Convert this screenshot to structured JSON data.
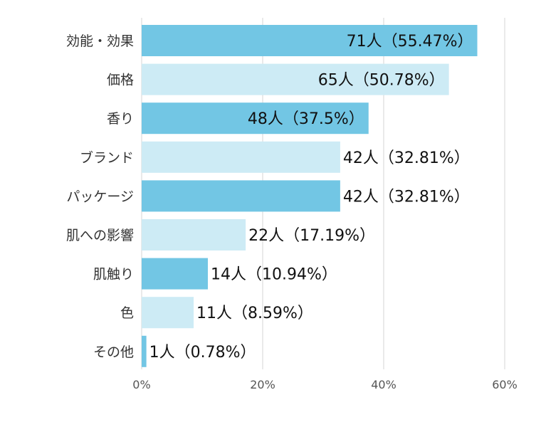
{
  "chart_data": {
    "type": "bar",
    "orientation": "horizontal",
    "title": "",
    "xlabel": "",
    "ylabel": "",
    "xlim": [
      0,
      60
    ],
    "xticks": [
      "0%",
      "20%",
      "40%",
      "60%"
    ],
    "grid": true,
    "legend": "none",
    "categories": [
      "効能・効果",
      "価格",
      "香り",
      "ブランド",
      "パッケージ",
      "肌への影響",
      "肌触り",
      "色",
      "その他"
    ],
    "values": [
      55.47,
      50.78,
      37.5,
      32.81,
      32.81,
      17.19,
      10.94,
      8.59,
      0.78
    ],
    "data_labels": [
      "71人（55.47%）",
      "65人（50.78%）",
      "48人（37.5%）",
      "42人（32.81%）",
      "42人（32.81%）",
      "22人（17.19%）",
      "14人（10.94%）",
      "11人（8.59%）",
      "1人（0.78%）"
    ],
    "colors": [
      "#72c6e4",
      "#cdebf5"
    ]
  }
}
